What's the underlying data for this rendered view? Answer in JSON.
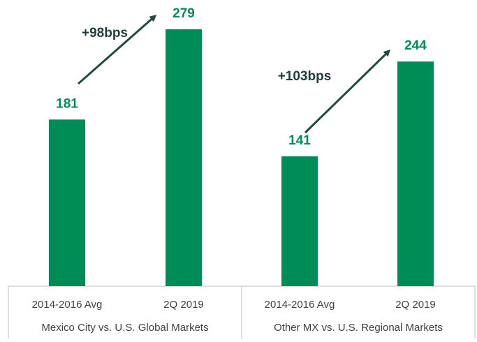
{
  "chart_data": {
    "type": "bar",
    "categories": [
      "2014-2016 Avg",
      "2Q 2019",
      "2014-2016 Avg",
      "2Q 2019"
    ],
    "groups": [
      "Mexico City vs. U.S. Global Markets",
      "Other MX vs. U.S. Regional Markets"
    ],
    "values": [
      181,
      279,
      141,
      244
    ],
    "color": "#008c56",
    "annotations": [
      "+98bps",
      "+103bps"
    ]
  }
}
